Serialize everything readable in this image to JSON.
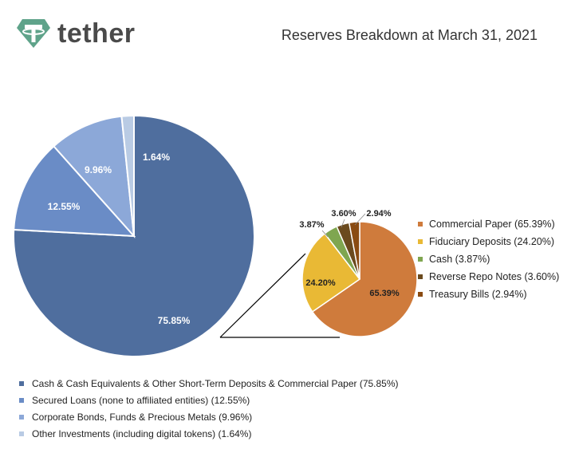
{
  "brand": {
    "name": "tether",
    "accent": "#5fa38a"
  },
  "header": {
    "title": "Reserves Breakdown at March 31, 2021"
  },
  "chart_data": [
    {
      "type": "pie",
      "categories": [
        "Cash & Cash Equivalents & Other Short-Term Deposits & Commercial Paper (75.85%)",
        "Secured Loans (none to affiliated entities) (12.55%)",
        "Corporate Bonds, Funds & Precious Metals (9.96%)",
        "Other Investments (including digital tokens) (1.64%)"
      ],
      "values": [
        75.85,
        12.55,
        9.96,
        1.64
      ],
      "labels": [
        "75.85%",
        "12.55%",
        "9.96%",
        "1.64%"
      ],
      "colors": [
        "#4f6e9e",
        "#6a8cc6",
        "#8ca8d8",
        "#b9cbe4"
      ],
      "legend_position": "bottom"
    },
    {
      "type": "pie",
      "categories": [
        "Commercial Paper (65.39%)",
        "Fiduciary Deposits (24.20%)",
        "Cash (3.87%)",
        "Reverse Repo Notes (3.60%)",
        "Treasury Bills (2.94%)"
      ],
      "values": [
        65.39,
        24.2,
        3.87,
        3.6,
        2.94
      ],
      "labels": [
        "65.39%",
        "24.20%",
        "3.87%",
        "3.60%",
        "2.94%"
      ],
      "colors": [
        "#cf7b3c",
        "#e9b935",
        "#7fa650",
        "#6b4a1e",
        "#8a4b12"
      ],
      "legend_position": "right"
    }
  ]
}
